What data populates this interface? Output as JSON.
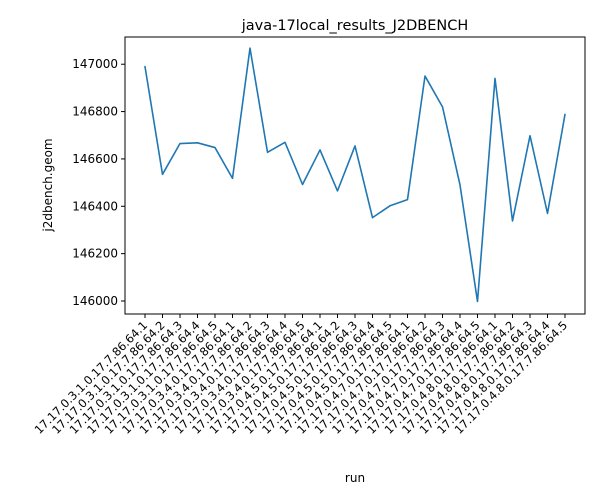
{
  "chart_data": {
    "type": "line",
    "title": "java-17local_results_J2DBENCH",
    "xlabel": "run",
    "ylabel": "j2dbench.geom",
    "ylim": [
      145945,
      147115
    ],
    "yticks": [
      146000,
      146200,
      146400,
      146600,
      146800,
      147000
    ],
    "ytick_labels": [
      "146000",
      "146200",
      "146400",
      "146600",
      "146800",
      "147000"
    ],
    "grid": false,
    "line_color": "#1f77b4",
    "x": [
      "17.17.0.3.1.0.17.7.86.64.1",
      "17.17.0.3.1.0.17.7.86.64.2",
      "17.17.0.3.1.0.17.7.86.64.3",
      "17.17.0.3.1.0.17.7.86.64.4",
      "17.17.0.3.1.0.17.7.86.64.5",
      "17.17.0.3.4.0.17.7.86.64.1",
      "17.17.0.3.4.0.17.7.86.64.2",
      "17.17.0.3.4.0.17.7.86.64.3",
      "17.17.0.3.4.0.17.7.86.64.4",
      "17.17.0.3.4.0.17.7.86.64.5",
      "17.17.0.4.5.0.17.7.86.64.1",
      "17.17.0.4.5.0.17.7.86.64.2",
      "17.17.0.4.5.0.17.7.86.64.3",
      "17.17.0.4.5.0.17.7.86.64.4",
      "17.17.0.4.5.0.17.7.86.64.5",
      "17.17.0.4.7.0.17.7.86.64.1",
      "17.17.0.4.7.0.17.7.86.64.2",
      "17.17.0.4.7.0.17.7.86.64.3",
      "17.17.0.4.7.0.17.7.86.64.4",
      "17.17.0.4.7.0.17.7.86.64.5",
      "17.17.0.4.8.0.17.7.86.64.1",
      "17.17.0.4.8.0.17.7.86.64.2",
      "17.17.0.4.8.0.17.7.86.64.3",
      "17.17.0.4.8.0.17.7.86.64.4",
      "17.17.0.4.8.0.17.7.86.64.5"
    ],
    "series": [
      {
        "values": [
          146990,
          146535,
          146665,
          146668,
          146648,
          146518,
          147068,
          146628,
          146670,
          146492,
          146638,
          146465,
          146655,
          146352,
          146402,
          146428,
          146950,
          146820,
          146490,
          145998,
          146940,
          146338,
          146698,
          146370,
          146788
        ]
      }
    ]
  }
}
